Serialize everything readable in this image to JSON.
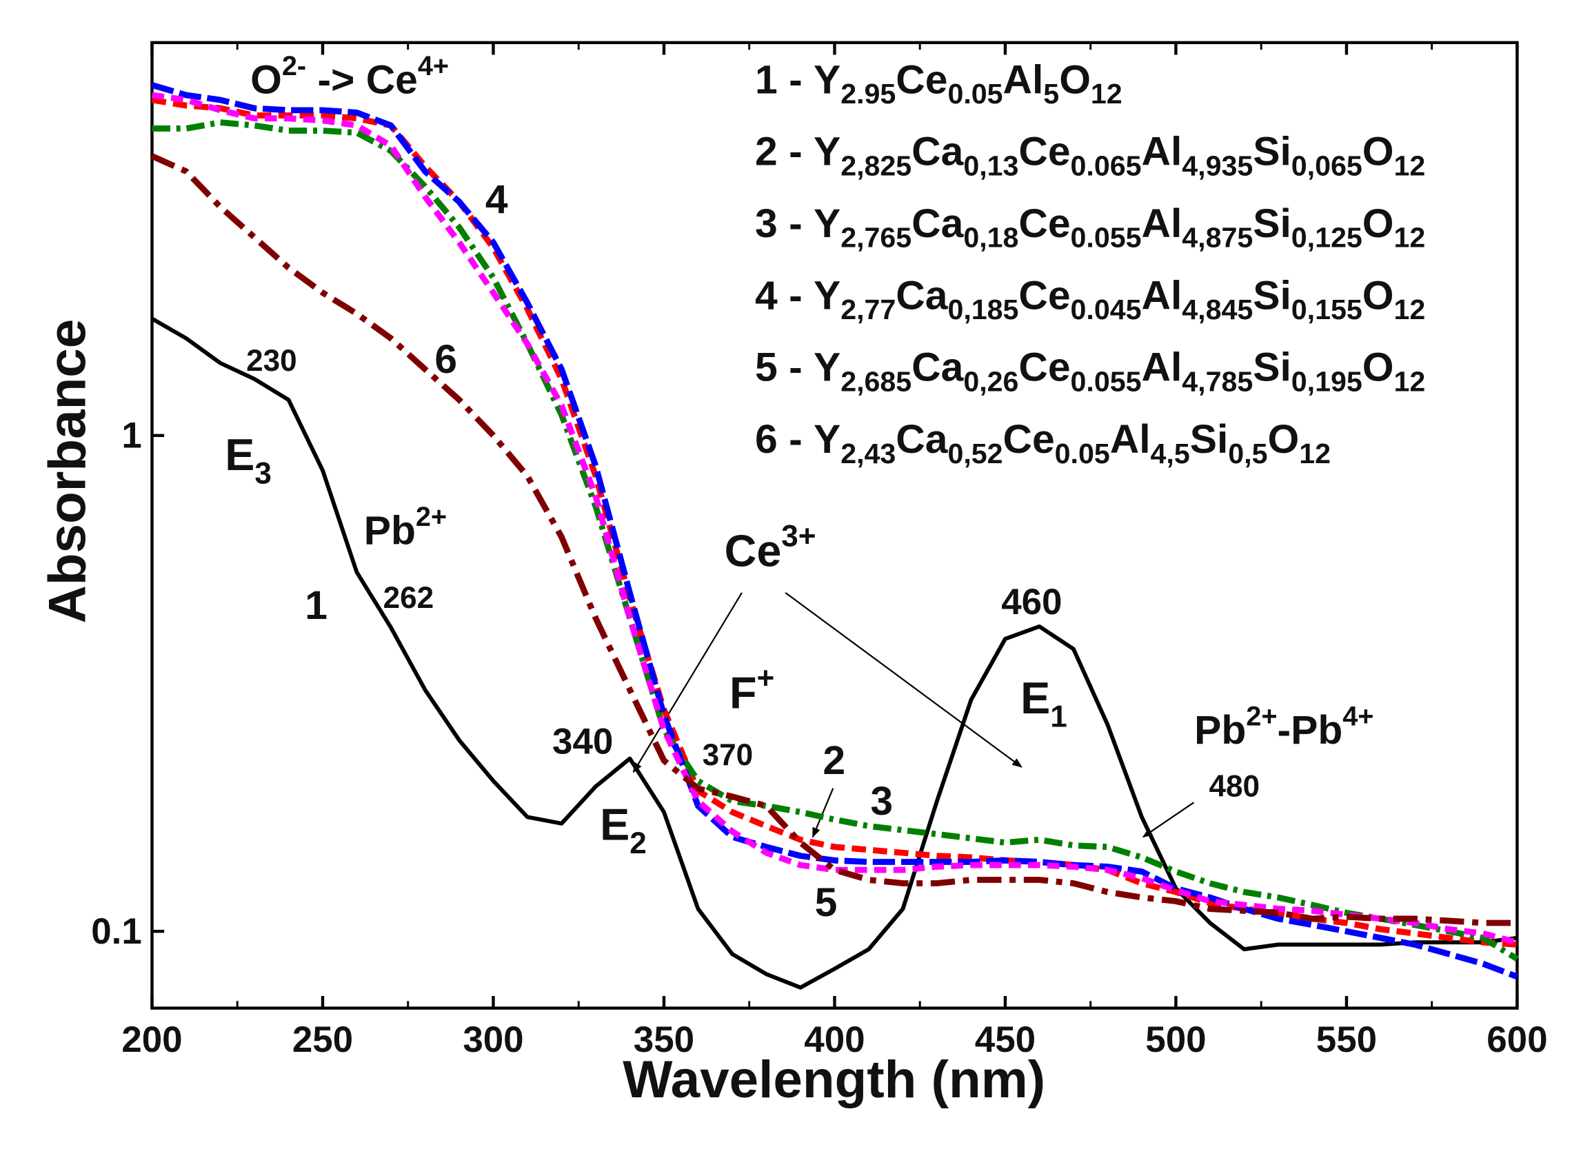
{
  "chart_data": {
    "type": "line",
    "xlabel": "Wavelength (nm)",
    "ylabel": "Absorbance",
    "xlim": [
      200,
      600
    ],
    "ylim": [
      0.07,
      6.2
    ],
    "ylog": true,
    "xticks": [
      200,
      250,
      300,
      350,
      400,
      450,
      500,
      550,
      600
    ],
    "xminorticks": [
      225,
      275,
      325,
      375,
      425,
      475,
      525,
      575
    ],
    "yticks": [
      0.1,
      1
    ],
    "legend_loc": "upper right",
    "x": [
      200,
      210,
      220,
      230,
      240,
      250,
      260,
      270,
      280,
      290,
      300,
      310,
      320,
      330,
      340,
      350,
      360,
      370,
      380,
      390,
      400,
      410,
      420,
      430,
      440,
      450,
      460,
      470,
      480,
      490,
      500,
      510,
      520,
      530,
      540,
      550,
      560,
      570,
      580,
      590,
      600
    ],
    "series": [
      {
        "name": "1 - Y2.95Ce0.05Al5O12",
        "color": "#000000",
        "dash": "none",
        "values": [
          1.72,
          1.57,
          1.4,
          1.3,
          1.18,
          0.85,
          0.53,
          0.41,
          0.307,
          0.243,
          0.201,
          0.17,
          0.165,
          0.196,
          0.223,
          0.174,
          0.111,
          0.09,
          0.082,
          0.077,
          0.084,
          0.092,
          0.111,
          0.183,
          0.293,
          0.389,
          0.412,
          0.371,
          0.261,
          0.17,
          0.122,
          0.104,
          0.092,
          0.094,
          0.094,
          0.094,
          0.094,
          0.095,
          0.095,
          0.095,
          0.097
        ]
      },
      {
        "name": "2 - Y2,825Ca0,13Ce0.065Al4,935Si0,065O12",
        "color": "#ff0000",
        "dash": "14 7",
        "values": [
          4.75,
          4.63,
          4.57,
          4.42,
          4.42,
          4.42,
          4.36,
          4.22,
          3.49,
          2.96,
          2.39,
          1.8,
          1.3,
          0.828,
          0.47,
          0.28,
          0.192,
          0.174,
          0.163,
          0.153,
          0.148,
          0.146,
          0.144,
          0.142,
          0.141,
          0.139,
          0.138,
          0.136,
          0.133,
          0.125,
          0.12,
          0.114,
          0.111,
          0.109,
          0.106,
          0.104,
          0.101,
          0.099,
          0.097,
          0.095,
          0.094
        ]
      },
      {
        "name": "3 - Y2,765Ca0,18Ce0.055Al4,875Si0,125O12",
        "color": "#008000",
        "dash": "18 6 4 6",
        "values": [
          4.16,
          4.16,
          4.28,
          4.22,
          4.12,
          4.12,
          4.08,
          3.75,
          3.18,
          2.63,
          2.08,
          1.53,
          1.1,
          0.719,
          0.428,
          0.255,
          0.201,
          0.183,
          0.179,
          0.174,
          0.168,
          0.163,
          0.16,
          0.157,
          0.154,
          0.151,
          0.153,
          0.149,
          0.148,
          0.141,
          0.132,
          0.125,
          0.12,
          0.117,
          0.113,
          0.109,
          0.106,
          0.103,
          0.1,
          0.097,
          0.088
        ]
      },
      {
        "name": "4 - Y2,77Ca0,185Ce0.045Al4,845Si0,155O12",
        "color": "#0000ff",
        "dash": "22 6",
        "values": [
          5.09,
          4.86,
          4.75,
          4.57,
          4.53,
          4.53,
          4.48,
          4.22,
          3.41,
          2.96,
          2.45,
          1.85,
          1.36,
          0.868,
          0.481,
          0.273,
          0.179,
          0.155,
          0.148,
          0.142,
          0.139,
          0.138,
          0.138,
          0.138,
          0.138,
          0.139,
          0.138,
          0.136,
          0.135,
          0.132,
          0.122,
          0.117,
          0.111,
          0.106,
          0.103,
          0.1,
          0.097,
          0.094,
          0.09,
          0.086,
          0.081
        ]
      },
      {
        "name": "5 - Y2,685Ca0,26Ce0.055Al4,785Si0,195O12",
        "color": "#ff00ff",
        "dash": "12 7",
        "values": [
          4.86,
          4.75,
          4.53,
          4.36,
          4.36,
          4.32,
          4.22,
          3.84,
          3.03,
          2.45,
          1.94,
          1.53,
          1.15,
          0.753,
          0.428,
          0.255,
          0.183,
          0.159,
          0.144,
          0.136,
          0.133,
          0.133,
          0.133,
          0.135,
          0.136,
          0.136,
          0.136,
          0.135,
          0.133,
          0.128,
          0.121,
          0.115,
          0.113,
          0.111,
          0.11,
          0.108,
          0.106,
          0.104,
          0.101,
          0.099,
          0.095
        ]
      },
      {
        "name": "6 - Y2,43Ca0,52Ce0.05Al4,5Si0,5O12",
        "color": "#800000",
        "dash": "24 8 6 8",
        "values": [
          3.66,
          3.41,
          2.89,
          2.51,
          2.18,
          1.94,
          1.76,
          1.57,
          1.36,
          1.18,
          1.0,
          0.828,
          0.624,
          0.428,
          0.307,
          0.221,
          0.194,
          0.187,
          0.179,
          0.151,
          0.133,
          0.127,
          0.125,
          0.125,
          0.127,
          0.127,
          0.127,
          0.125,
          0.12,
          0.117,
          0.115,
          0.111,
          0.11,
          0.109,
          0.106,
          0.107,
          0.106,
          0.106,
          0.105,
          0.104,
          0.104
        ]
      }
    ],
    "annotations": [
      {
        "parts": [
          {
            "text": "O"
          },
          {
            "sup": "2-"
          },
          {
            "text": " -> Ce"
          },
          {
            "sup": "4+"
          }
        ]
      },
      {
        "parts": [
          {
            "text": "4"
          }
        ]
      },
      {
        "parts": [
          {
            "text": "6"
          }
        ]
      },
      {
        "parts": [
          {
            "text": "230"
          }
        ]
      },
      {
        "parts": [
          {
            "text": "E"
          },
          {
            "sub": "3"
          }
        ]
      },
      {
        "parts": [
          {
            "text": "Pb"
          },
          {
            "sup": "2+"
          }
        ]
      },
      {
        "parts": [
          {
            "text": "1"
          }
        ]
      },
      {
        "parts": [
          {
            "text": "262"
          }
        ]
      },
      {
        "parts": [
          {
            "text": "Ce"
          },
          {
            "sup": "3+"
          }
        ]
      },
      {
        "parts": [
          {
            "text": "F"
          },
          {
            "sup": "+"
          }
        ]
      },
      {
        "parts": [
          {
            "text": "340"
          }
        ]
      },
      {
        "parts": [
          {
            "text": "370"
          }
        ]
      },
      {
        "parts": [
          {
            "text": "E"
          },
          {
            "sub": "2"
          }
        ]
      },
      {
        "parts": [
          {
            "text": "460"
          }
        ]
      },
      {
        "parts": [
          {
            "text": "E"
          },
          {
            "sub": "1"
          }
        ]
      },
      {
        "parts": [
          {
            "text": "Pb"
          },
          {
            "sup": "2+"
          },
          {
            "text": "-Pb"
          },
          {
            "sup": "4+"
          }
        ]
      },
      {
        "parts": [
          {
            "text": "480"
          }
        ]
      },
      {
        "parts": [
          {
            "text": "2"
          }
        ]
      },
      {
        "parts": [
          {
            "text": "3"
          }
        ]
      },
      {
        "parts": [
          {
            "text": "5"
          }
        ]
      }
    ]
  }
}
